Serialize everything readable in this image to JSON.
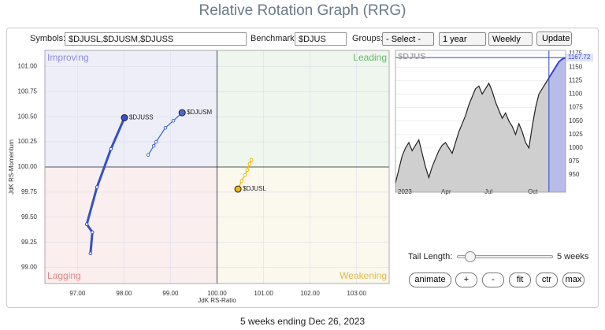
{
  "header": {
    "title": "Relative Rotation Graph (RRG)"
  },
  "controls": {
    "symbols_label": "Symbols:",
    "symbols_value": "$DJUSL,$DJUSM,$DJUSS",
    "benchmark_label": "Benchmark:",
    "benchmark_value": "$DJUS",
    "groups_label": "Groups:",
    "groups_value": "- Select -",
    "period_value": "1 year",
    "frequency_value": "Weekly",
    "update_button": "Update"
  },
  "chart_data": [
    {
      "type": "scatter",
      "xlabel": "JdK RS-Ratio",
      "ylabel": "JdK RS-Momentum",
      "xlim": [
        96.3,
        103.7
      ],
      "ylim": [
        98.84,
        101.16
      ],
      "xticks": [
        {
          "value": 97,
          "label": "97.00"
        },
        {
          "value": 98,
          "label": "98.00"
        },
        {
          "value": 99,
          "label": "99.00"
        },
        {
          "value": 100,
          "label": "100.00"
        },
        {
          "value": 101,
          "label": "101.00"
        },
        {
          "value": 102,
          "label": "102.00"
        },
        {
          "value": 103,
          "label": "103.00"
        }
      ],
      "yticks": [
        {
          "value": 99,
          "label": "99.00"
        },
        {
          "value": 99.25,
          "label": "99.25"
        },
        {
          "value": 99.5,
          "label": "99.50"
        },
        {
          "value": 99.75,
          "label": "99.75"
        },
        {
          "value": 100,
          "label": "100.00"
        },
        {
          "value": 100.25,
          "label": "100.25"
        },
        {
          "value": 100.5,
          "label": "100.50"
        },
        {
          "value": 100.75,
          "label": "100.75"
        },
        {
          "value": 101,
          "label": "101.00"
        }
      ],
      "grid": true,
      "quadrants": [
        {
          "name": "Improving",
          "color": "#eeeef9",
          "text_color": "#8c8ce0"
        },
        {
          "name": "Leading",
          "color": "#eef6ee",
          "text_color": "#66bb66"
        },
        {
          "name": "Lagging",
          "color": "#fbeeee",
          "text_color": "#e08888"
        },
        {
          "name": "Weakening",
          "color": "#fbf8ee",
          "text_color": "#e0bb44"
        }
      ],
      "series": [
        {
          "name": "$DJUSL",
          "color": "#f0b800",
          "x": [
            100.74,
            100.7,
            100.65,
            100.6,
            100.53,
            100.45
          ],
          "y": [
            100.07,
            100.03,
            99.97,
            99.92,
            99.86,
            99.78
          ]
        },
        {
          "name": "$DJUSM",
          "color": "#4a6acc",
          "x": [
            98.52,
            98.64,
            98.69,
            98.89,
            99.06,
            99.25
          ],
          "y": [
            100.12,
            100.21,
            100.25,
            100.39,
            100.46,
            100.54
          ]
        },
        {
          "name": "$DJUSS",
          "color": "#3352c4",
          "x": [
            97.28,
            97.32,
            97.2,
            97.42,
            97.72,
            98.01
          ],
          "y": [
            99.14,
            99.35,
            99.43,
            99.8,
            100.18,
            100.49
          ]
        }
      ]
    },
    {
      "type": "line",
      "title": "$DJUS",
      "color": "#222222",
      "categories": [
        "2023",
        null,
        null,
        null,
        null,
        null,
        null,
        null,
        null,
        null,
        null,
        null,
        null,
        "Apr",
        null,
        null,
        null,
        null,
        null,
        null,
        null,
        null,
        null,
        null,
        null,
        null,
        "Jul",
        null,
        null,
        null,
        null,
        null,
        null,
        null,
        null,
        null,
        null,
        null,
        null,
        "Oct",
        null,
        null,
        null,
        null,
        null,
        null,
        null,
        null,
        null,
        null,
        null,
        null
      ],
      "values": [
        935,
        960,
        985,
        1000,
        1010,
        995,
        1005,
        1015,
        990,
        965,
        945,
        965,
        980,
        995,
        1005,
        1010,
        1000,
        990,
        1010,
        1030,
        1045,
        1060,
        1080,
        1095,
        1110,
        1115,
        1100,
        1110,
        1120,
        1105,
        1085,
        1070,
        1055,
        1065,
        1050,
        1040,
        1025,
        1045,
        1030,
        1010,
        1000,
        1040,
        1075,
        1100,
        1110,
        1120,
        1130,
        1140,
        1150,
        1160,
        1165,
        1167.72
      ],
      "ylim": [
        918,
        1181
      ],
      "yticks": [
        950,
        975,
        1000,
        1025,
        1050,
        1075,
        1100,
        1125,
        1150,
        1175
      ]
    }
  ],
  "tail_controls": {
    "label": "Tail Length:",
    "value": "5 weeks",
    "buttons": [
      "animate",
      "+",
      "-",
      "fit",
      "ctr",
      "max"
    ]
  },
  "footer": {
    "caption": "5 weeks ending Dec 26, 2023"
  }
}
